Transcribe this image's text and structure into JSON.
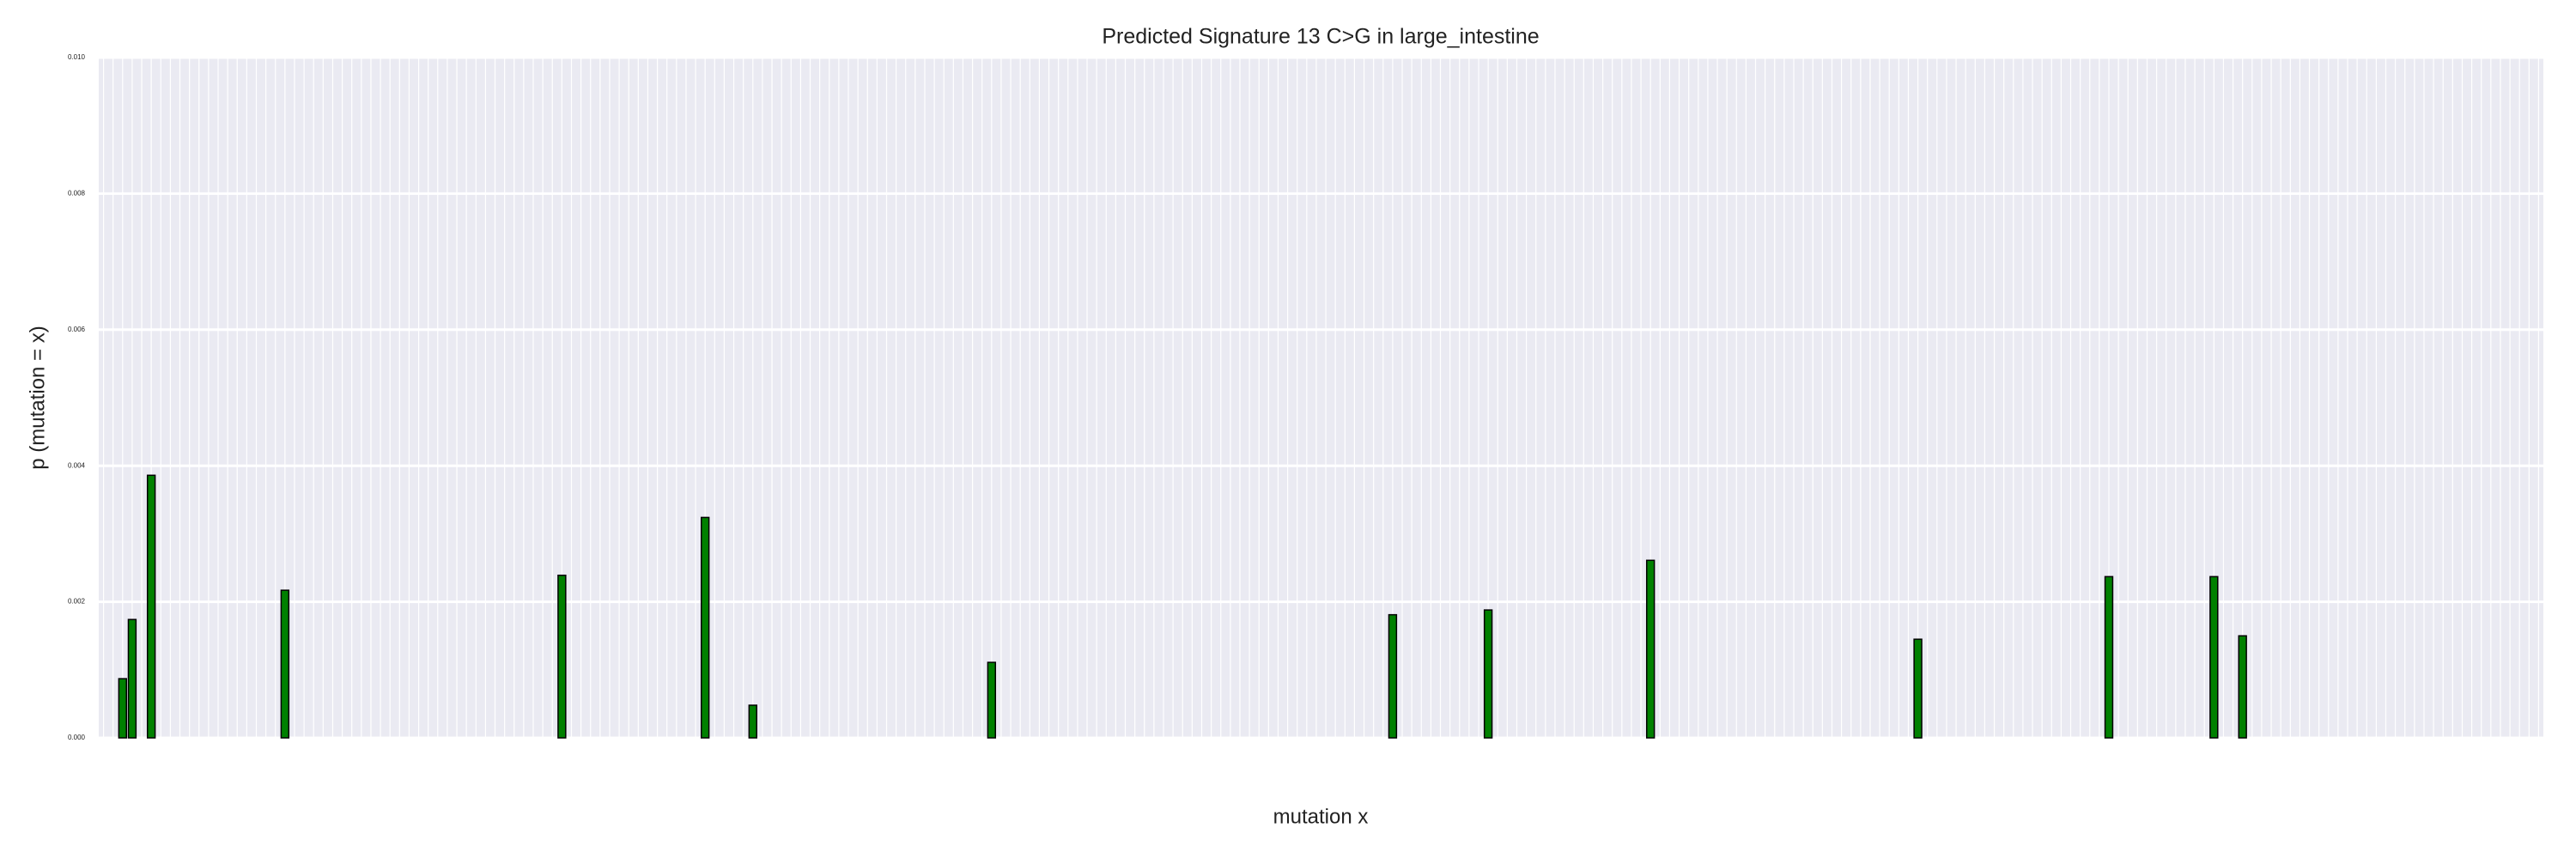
{
  "chart_data": {
    "type": "bar",
    "title": "Predicted Signature 13 C>G in large_intestine",
    "xlabel": "mutation x",
    "ylabel": "p (mutation = x)",
    "color": "#008000",
    "grid": true,
    "ylim": [
      0,
      0.01
    ],
    "yticks": [
      {
        "value": 0,
        "label": "0.000"
      },
      {
        "value": 0.002,
        "label": "0.002"
      },
      {
        "value": 0.004,
        "label": "0.004"
      },
      {
        "value": 0.006,
        "label": "0.006"
      },
      {
        "value": 0.008,
        "label": "0.008"
      },
      {
        "value": 0.01,
        "label": "0.010"
      }
    ],
    "categories": [
      null,
      null,
      null,
      null,
      null,
      null,
      null,
      null,
      null,
      null,
      null,
      null,
      null,
      null,
      null,
      null,
      null,
      null,
      null,
      null,
      null,
      null,
      null,
      null,
      null,
      null,
      null,
      null,
      null,
      null,
      null,
      null,
      null,
      null,
      null,
      null,
      null,
      null,
      null,
      null,
      null,
      null,
      null,
      null,
      null,
      null,
      null,
      null,
      null,
      null,
      null,
      null,
      null,
      null,
      null,
      null,
      null,
      null,
      null,
      null,
      null,
      null,
      null,
      null,
      null,
      null,
      null,
      null,
      null,
      null,
      null,
      null,
      null,
      null,
      null,
      null,
      null,
      null,
      null,
      null,
      null,
      null,
      null,
      null,
      null,
      null,
      null,
      null,
      null,
      null,
      null,
      null,
      null,
      null,
      null,
      null,
      null,
      null,
      null,
      null,
      null,
      null,
      null,
      null,
      null,
      null,
      null,
      null,
      null,
      null,
      null,
      null,
      null,
      null,
      null,
      null,
      null,
      null,
      null,
      null,
      null,
      null,
      null,
      null,
      null,
      null,
      null,
      null,
      null,
      null,
      null,
      null,
      null,
      null,
      null,
      null,
      null,
      null,
      null,
      null,
      null,
      null,
      null,
      null,
      null,
      null,
      null,
      null,
      null,
      null,
      null,
      null,
      null,
      null,
      null,
      null,
      null,
      null,
      null,
      null,
      null,
      null,
      null,
      null,
      null,
      null,
      null,
      null,
      null,
      null,
      null,
      null,
      null,
      null,
      null,
      null,
      null,
      null,
      null,
      null,
      null,
      null,
      null,
      null,
      null,
      null,
      null,
      null,
      null,
      null,
      null,
      null,
      null,
      null,
      null,
      null,
      null,
      null,
      null,
      null,
      null,
      null,
      null,
      null,
      null,
      null,
      null,
      null,
      null,
      null,
      null,
      null,
      null,
      null,
      null,
      null,
      null,
      null,
      null,
      null,
      null,
      null,
      null,
      null,
      null,
      null,
      null,
      null,
      null,
      null,
      null,
      null,
      null,
      null,
      null,
      null,
      null,
      null,
      null,
      null,
      null,
      null,
      null,
      null,
      null,
      null,
      null,
      null,
      null,
      null,
      null,
      null,
      null,
      null,
      null,
      null
    ],
    "values": [
      0,
      0,
      0.00087,
      0.00174,
      0,
      0.00386,
      0,
      0,
      0,
      0,
      0,
      0,
      0,
      0,
      0,
      0,
      0,
      0,
      0,
      0.00217,
      0,
      0,
      0,
      0,
      0,
      0,
      0,
      0,
      0,
      0,
      0,
      0,
      0,
      0,
      0,
      0,
      0,
      0,
      0,
      0,
      0,
      0,
      0,
      0,
      0,
      0,
      0,
      0,
      0.00239,
      0,
      0,
      0,
      0,
      0,
      0,
      0,
      0,
      0,
      0,
      0,
      0,
      0,
      0,
      0.00324,
      0,
      0,
      0,
      0,
      0.00048,
      0,
      0,
      0,
      0,
      0,
      0,
      0,
      0,
      0,
      0,
      0,
      0,
      0,
      0,
      0,
      0,
      0,
      0,
      0,
      0,
      0,
      0,
      0,
      0,
      0.00111,
      0,
      0,
      0,
      0,
      0,
      0,
      0,
      0,
      0,
      0,
      0,
      0,
      0,
      0,
      0,
      0,
      0,
      0,
      0,
      0,
      0,
      0,
      0,
      0,
      0,
      0,
      0,
      0,
      0,
      0,
      0,
      0,
      0,
      0,
      0,
      0,
      0,
      0,
      0,
      0,
      0,
      0.00181,
      0,
      0,
      0,
      0,
      0,
      0,
      0,
      0,
      0,
      0.00188,
      0,
      0,
      0,
      0,
      0,
      0,
      0,
      0,
      0,
      0,
      0,
      0,
      0,
      0,
      0,
      0,
      0.00261,
      0,
      0,
      0,
      0,
      0,
      0,
      0,
      0,
      0,
      0,
      0,
      0,
      0,
      0,
      0,
      0,
      0,
      0,
      0,
      0,
      0,
      0,
      0,
      0,
      0,
      0,
      0,
      0.00145,
      0,
      0,
      0,
      0,
      0,
      0,
      0,
      0,
      0,
      0,
      0,
      0,
      0,
      0,
      0,
      0,
      0,
      0,
      0,
      0.00237,
      0,
      0,
      0,
      0,
      0,
      0,
      0,
      0,
      0,
      0,
      0.00237,
      0,
      0,
      0.0015,
      0,
      0,
      0,
      0,
      0,
      0,
      0,
      0,
      0,
      0,
      0,
      0,
      0,
      0,
      0,
      0,
      0,
      0,
      0,
      0,
      0,
      0,
      0,
      0,
      0,
      0,
      0,
      0,
      0,
      0,
      0
    ]
  }
}
